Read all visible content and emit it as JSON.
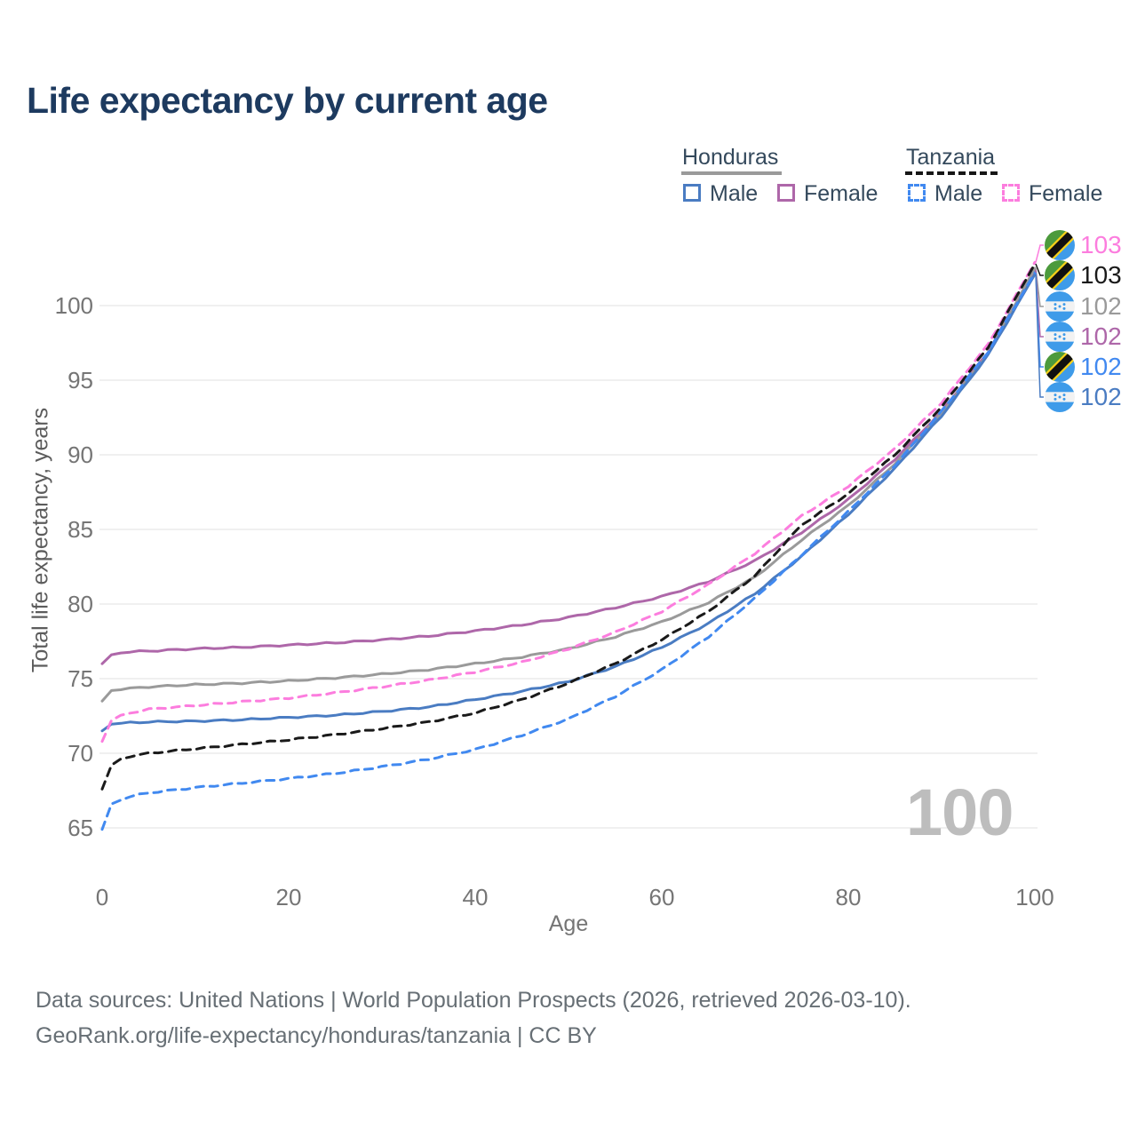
{
  "header": {
    "title": "Life expectancy by current age"
  },
  "legend": {
    "honduras": {
      "label": "Honduras",
      "male": "Male",
      "female": "Female",
      "male_color": "#4A7CC2",
      "female_color": "#AE67A9",
      "line_color": "#9A9A9A"
    },
    "tanzania": {
      "label": "Tanzania",
      "male": "Male",
      "female": "Female",
      "male_color": "#4189F0",
      "female_color": "#FC7DDE",
      "line_color": "#1A1A1A"
    }
  },
  "axes": {
    "x_label": "Age",
    "y_label": "Total life expectancy, years",
    "x_ticks": [
      0,
      20,
      40,
      60,
      80,
      100
    ],
    "y_ticks": [
      65,
      70,
      75,
      80,
      85,
      90,
      95,
      100
    ]
  },
  "watermark": "100",
  "end_labels": [
    {
      "value": "103",
      "flag": "tanzania",
      "series": "Tanzania Female",
      "color": "#FC7DDE"
    },
    {
      "value": "103",
      "flag": "tanzania",
      "series": "Tanzania",
      "color": "#1A1A1A"
    },
    {
      "value": "102",
      "flag": "honduras",
      "series": "Honduras",
      "color": "#9A9A9A"
    },
    {
      "value": "102",
      "flag": "honduras",
      "series": "Honduras Female",
      "color": "#AE67A9"
    },
    {
      "value": "102",
      "flag": "tanzania",
      "series": "Tanzania Male",
      "color": "#4189F0"
    },
    {
      "value": "102",
      "flag": "honduras",
      "series": "Honduras Male",
      "color": "#4A7CC2"
    }
  ],
  "footer": {
    "line1": "Data sources: United Nations | World Population Prospects (2026, retrieved 2026-03-10).",
    "line2": "GeoRank.org/life-expectancy/honduras/tanzania | CC BY"
  },
  "chart_data": {
    "type": "line",
    "title": "Life expectancy by current age",
    "xlabel": "Age",
    "ylabel": "Total life expectancy, years",
    "x_range": [
      0,
      100
    ],
    "y_range": [
      63,
      104
    ],
    "x_ticks": [
      0,
      20,
      40,
      60,
      80,
      100
    ],
    "y_ticks": [
      65,
      70,
      75,
      80,
      85,
      90,
      95,
      100
    ],
    "grid": "horizontal",
    "legend_position": "top-right",
    "ages": [
      0,
      1,
      2,
      3,
      5,
      10,
      15,
      20,
      25,
      30,
      35,
      40,
      45,
      50,
      55,
      60,
      65,
      70,
      75,
      80,
      85,
      90,
      95,
      100
    ],
    "series": [
      {
        "name": "Honduras Female",
        "country": "Honduras",
        "sex": "female",
        "color": "#AE67A9",
        "dash": false,
        "values": [
          76.0,
          76.6,
          76.75,
          76.8,
          76.85,
          77.0,
          77.1,
          77.25,
          77.4,
          77.6,
          77.85,
          78.2,
          78.6,
          79.1,
          79.75,
          80.5,
          81.5,
          82.9,
          84.8,
          87.0,
          89.7,
          92.9,
          96.9,
          102.4
        ]
      },
      {
        "name": "Honduras",
        "country": "Honduras",
        "sex": "both",
        "color": "#9A9A9A",
        "dash": false,
        "values": [
          73.5,
          74.2,
          74.3,
          74.35,
          74.45,
          74.6,
          74.7,
          74.85,
          75.05,
          75.3,
          75.6,
          76.0,
          76.45,
          77.0,
          77.8,
          78.8,
          80.1,
          81.8,
          84.3,
          86.6,
          89.4,
          92.8,
          96.8,
          102.5
        ]
      },
      {
        "name": "Honduras Male",
        "country": "Honduras",
        "sex": "male",
        "color": "#4A7CC2",
        "dash": false,
        "values": [
          71.5,
          71.95,
          72.0,
          72.05,
          72.1,
          72.15,
          72.25,
          72.4,
          72.55,
          72.8,
          73.1,
          73.6,
          74.15,
          74.8,
          75.8,
          77.1,
          78.7,
          80.7,
          83.2,
          86.0,
          89.1,
          92.6,
          96.7,
          102.1
        ]
      },
      {
        "name": "Tanzania Female",
        "country": "Tanzania",
        "sex": "female",
        "color": "#FC7DDE",
        "dash": true,
        "values": [
          70.8,
          72.2,
          72.5,
          72.7,
          72.95,
          73.2,
          73.45,
          73.7,
          74.05,
          74.45,
          74.9,
          75.45,
          76.1,
          77.0,
          78.1,
          79.5,
          81.3,
          83.4,
          85.9,
          87.9,
          90.4,
          93.5,
          97.4,
          102.9
        ]
      },
      {
        "name": "Tanzania",
        "country": "Tanzania",
        "sex": "both",
        "color": "#1A1A1A",
        "dash": true,
        "values": [
          67.6,
          69.2,
          69.6,
          69.8,
          70.0,
          70.3,
          70.6,
          70.9,
          71.25,
          71.65,
          72.1,
          72.7,
          73.6,
          74.7,
          76.0,
          77.6,
          79.5,
          81.9,
          85.3,
          87.4,
          90.0,
          93.2,
          97.2,
          102.8
        ]
      },
      {
        "name": "Tanzania Male",
        "country": "Tanzania",
        "sex": "male",
        "color": "#4189F0",
        "dash": true,
        "values": [
          64.9,
          66.6,
          66.9,
          67.1,
          67.35,
          67.7,
          68.0,
          68.3,
          68.65,
          69.1,
          69.6,
          70.25,
          71.2,
          72.3,
          73.8,
          75.6,
          77.8,
          80.4,
          83.3,
          86.2,
          89.3,
          92.9,
          96.9,
          102.2
        ]
      }
    ]
  }
}
